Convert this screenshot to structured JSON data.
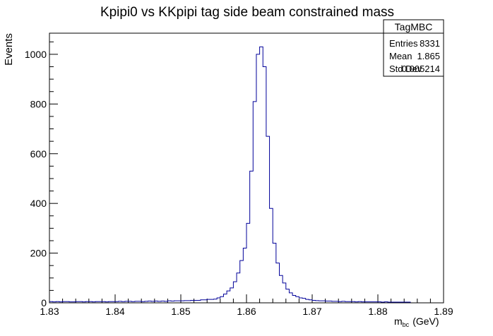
{
  "chart_data": {
    "type": "histogram",
    "title": "Kpipi0 vs KKpipi tag side beam constrained mass",
    "xlabel_main": "m",
    "xlabel_sub": "bc",
    "xlabel_unit": "(GeV)",
    "ylabel": "Events",
    "xlim": [
      1.83,
      1.89
    ],
    "ylim": [
      0,
      1085
    ],
    "xticks": [
      {
        "value": 1.83,
        "label": "1.83"
      },
      {
        "value": 1.84,
        "label": "1.84"
      },
      {
        "value": 1.85,
        "label": "1.85"
      },
      {
        "value": 1.86,
        "label": "1.86"
      },
      {
        "value": 1.87,
        "label": "1.87"
      },
      {
        "value": 1.88,
        "label": "1.88"
      },
      {
        "value": 1.89,
        "label": "1.89"
      }
    ],
    "yticks": [
      {
        "value": 0,
        "label": "0"
      },
      {
        "value": 200,
        "label": "200"
      },
      {
        "value": 400,
        "label": "400"
      },
      {
        "value": 600,
        "label": "600"
      },
      {
        "value": 800,
        "label": "800"
      },
      {
        "value": 1000,
        "label": "1000"
      }
    ],
    "bin_start": 1.83,
    "bin_width": 0.0005,
    "values": [
      5,
      4,
      5,
      4,
      5,
      5,
      4,
      4,
      5,
      5,
      4,
      5,
      5,
      4,
      5,
      5,
      5,
      4,
      5,
      5,
      5,
      6,
      5,
      6,
      6,
      5,
      6,
      6,
      5,
      6,
      7,
      6,
      7,
      6,
      7,
      6,
      8,
      7,
      8,
      8,
      8,
      9,
      9,
      10,
      10,
      10,
      12,
      12,
      14,
      14,
      15,
      20,
      25,
      35,
      48,
      60,
      85,
      120,
      170,
      220,
      320,
      530,
      810,
      1000,
      1030,
      950,
      670,
      380,
      240,
      160,
      110,
      80,
      55,
      40,
      30,
      25,
      20,
      18,
      14,
      12,
      10,
      9,
      8,
      8,
      7,
      7,
      6,
      6,
      5,
      6,
      5,
      5,
      5,
      4,
      5,
      4,
      4,
      4,
      4,
      4,
      4,
      3,
      4,
      3,
      3,
      3,
      3,
      3,
      3,
      3
    ],
    "series_color": "#000099",
    "stats_box": {
      "title": "TagMBC",
      "rows": [
        {
          "label": "Entries",
          "value": "8331"
        },
        {
          "label": "Mean",
          "value": "1.865"
        },
        {
          "label": "Std Dev",
          "value": "0.005214"
        }
      ]
    }
  }
}
